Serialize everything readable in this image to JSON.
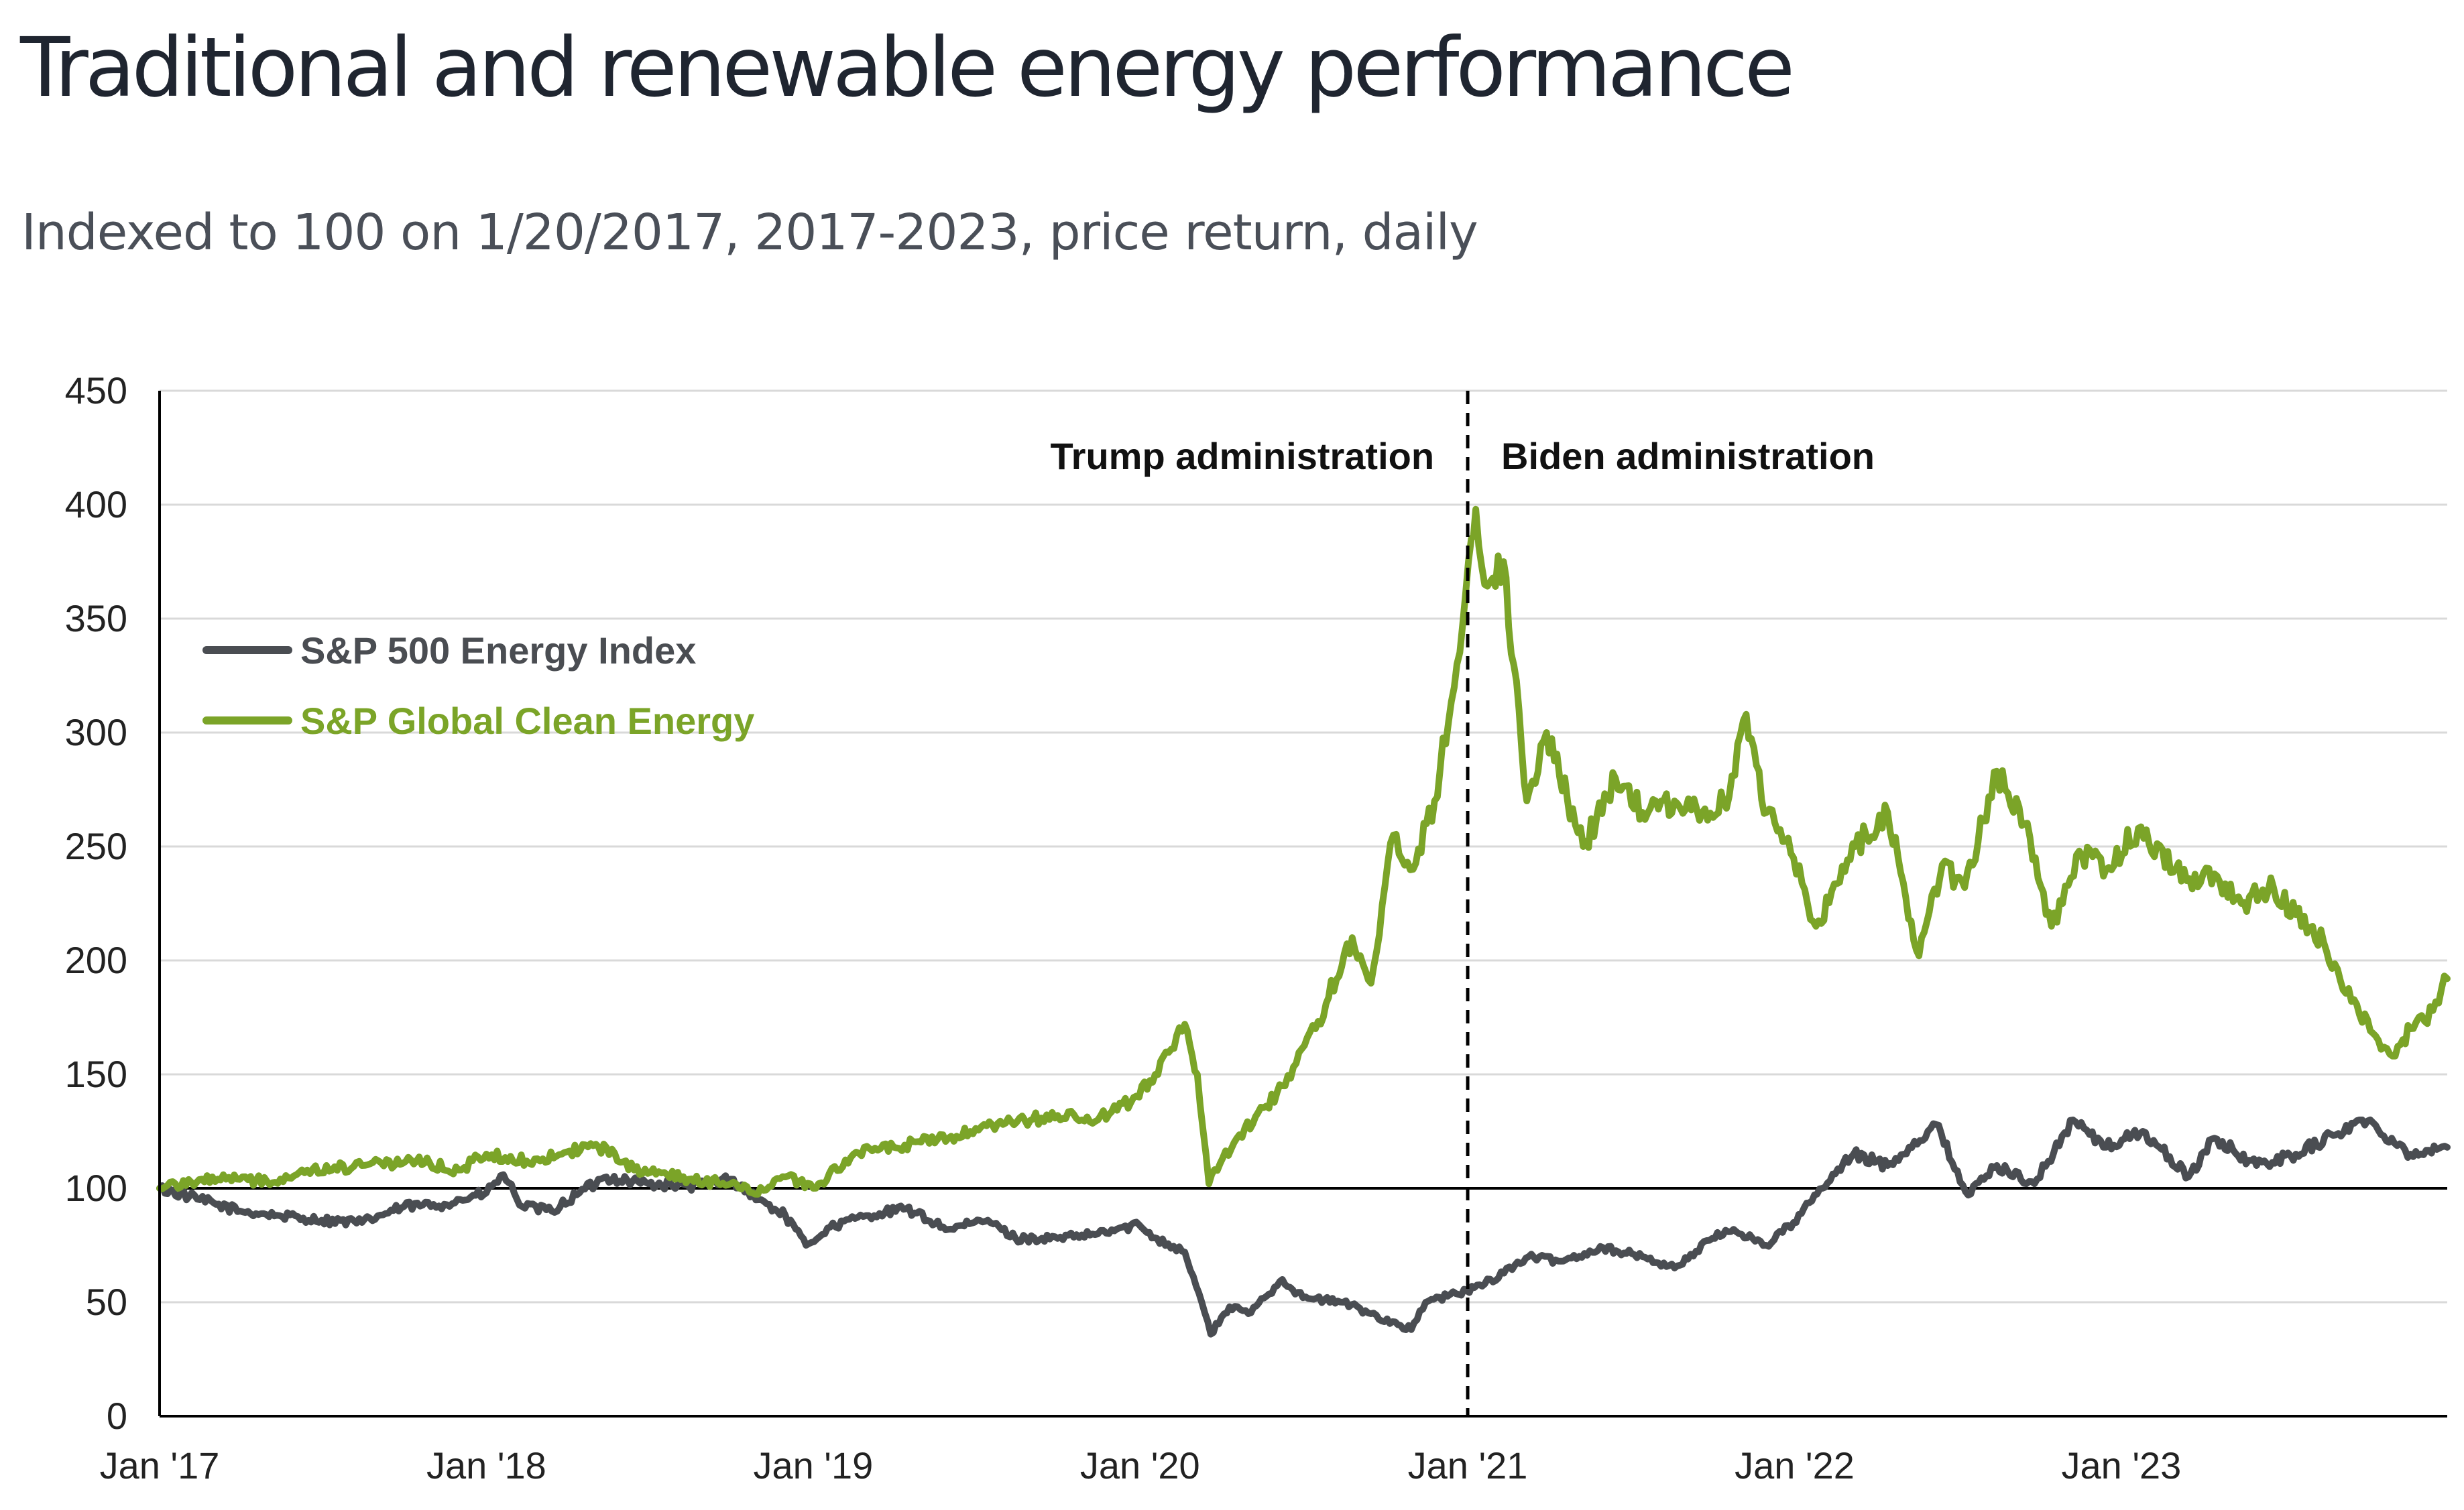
{
  "title": "Traditional and renewable energy performance",
  "subtitle": "Indexed to 100 on 1/20/2017, 2017-2023, price return, daily",
  "chart_data": {
    "type": "line",
    "title": "Traditional and renewable energy performance",
    "subtitle": "Indexed to 100 on 1/20/2017, 2017-2023, price return, daily",
    "xlabel": "",
    "ylabel": "",
    "ylim": [
      0,
      450
    ],
    "yticks": [
      0,
      50,
      100,
      150,
      200,
      250,
      300,
      350,
      400,
      450
    ],
    "xlim": [
      "2017-01-01",
      "2023-12-31"
    ],
    "xticks": [
      {
        "date": "2017-01-01",
        "label": "Jan '17"
      },
      {
        "date": "2018-01-01",
        "label": "Jan '18"
      },
      {
        "date": "2019-01-01",
        "label": "Jan '19"
      },
      {
        "date": "2020-01-01",
        "label": "Jan '20"
      },
      {
        "date": "2021-01-01",
        "label": "Jan '21"
      },
      {
        "date": "2022-01-01",
        "label": "Jan '22"
      },
      {
        "date": "2023-01-01",
        "label": "Jan '23"
      }
    ],
    "grid": true,
    "legend_position": "top-left",
    "reference_line": {
      "y": 100,
      "color": "#000000"
    },
    "divider": {
      "date": "2021-01-01",
      "style": "dashed"
    },
    "annotations": [
      {
        "text": "Trump administration",
        "date": "2021-01-01",
        "side": "left"
      },
      {
        "text": "Biden administration",
        "date": "2021-01-01",
        "side": "right"
      }
    ],
    "series": [
      {
        "name": "S&P 500 Energy Index",
        "color": "#4a4d52",
        "points": [
          [
            "2017-01-01",
            100
          ],
          [
            "2017-02-15",
            95
          ],
          [
            "2017-04-01",
            90
          ],
          [
            "2017-05-15",
            88
          ],
          [
            "2017-07-01",
            86
          ],
          [
            "2017-08-15",
            85
          ],
          [
            "2017-10-01",
            92
          ],
          [
            "2017-11-15",
            93
          ],
          [
            "2018-01-01",
            98
          ],
          [
            "2018-01-20",
            106
          ],
          [
            "2018-02-10",
            92
          ],
          [
            "2018-03-15",
            90
          ],
          [
            "2018-04-15",
            98
          ],
          [
            "2018-05-15",
            105
          ],
          [
            "2018-07-01",
            102
          ],
          [
            "2018-08-15",
            101
          ],
          [
            "2018-10-01",
            104
          ],
          [
            "2018-11-01",
            95
          ],
          [
            "2018-12-01",
            88
          ],
          [
            "2018-12-24",
            75
          ],
          [
            "2019-01-20",
            83
          ],
          [
            "2019-03-01",
            88
          ],
          [
            "2019-04-15",
            91
          ],
          [
            "2019-06-01",
            82
          ],
          [
            "2019-07-15",
            86
          ],
          [
            "2019-08-15",
            78
          ],
          [
            "2019-10-01",
            78
          ],
          [
            "2019-11-15",
            80
          ],
          [
            "2019-12-31",
            84
          ],
          [
            "2020-01-20",
            78
          ],
          [
            "2020-02-20",
            72
          ],
          [
            "2020-03-10",
            50
          ],
          [
            "2020-03-20",
            36
          ],
          [
            "2020-04-10",
            48
          ],
          [
            "2020-05-01",
            45
          ],
          [
            "2020-06-08",
            60
          ],
          [
            "2020-07-01",
            52
          ],
          [
            "2020-08-15",
            50
          ],
          [
            "2020-09-15",
            45
          ],
          [
            "2020-10-30",
            38
          ],
          [
            "2020-11-15",
            50
          ],
          [
            "2020-12-31",
            55
          ],
          [
            "2021-01-20",
            58
          ],
          [
            "2021-03-10",
            70
          ],
          [
            "2021-04-15",
            68
          ],
          [
            "2021-06-01",
            74
          ],
          [
            "2021-07-15",
            70
          ],
          [
            "2021-08-20",
            65
          ],
          [
            "2021-10-01",
            78
          ],
          [
            "2021-10-25",
            82
          ],
          [
            "2021-11-30",
            75
          ],
          [
            "2021-12-31",
            85
          ],
          [
            "2022-02-01",
            100
          ],
          [
            "2022-03-08",
            115
          ],
          [
            "2022-04-15",
            110
          ],
          [
            "2022-06-08",
            128
          ],
          [
            "2022-07-14",
            97
          ],
          [
            "2022-08-15",
            110
          ],
          [
            "2022-09-26",
            102
          ],
          [
            "2022-11-08",
            130
          ],
          [
            "2022-12-15",
            118
          ],
          [
            "2023-01-25",
            125
          ],
          [
            "2023-03-17",
            105
          ],
          [
            "2023-04-15",
            122
          ],
          [
            "2023-06-01",
            110
          ],
          [
            "2023-07-15",
            115
          ],
          [
            "2023-09-27",
            130
          ],
          [
            "2023-10-30",
            122
          ],
          [
            "2023-11-20",
            115
          ],
          [
            "2023-12-31",
            118
          ]
        ]
      },
      {
        "name": "S&P Global Clean Energy",
        "color": "#7ba428",
        "points": [
          [
            "2017-01-01",
            100
          ],
          [
            "2017-03-01",
            105
          ],
          [
            "2017-05-01",
            103
          ],
          [
            "2017-06-15",
            108
          ],
          [
            "2017-08-15",
            110
          ],
          [
            "2017-10-15",
            112
          ],
          [
            "2017-12-01",
            108
          ],
          [
            "2018-01-01",
            115
          ],
          [
            "2018-02-15",
            112
          ],
          [
            "2018-04-01",
            116
          ],
          [
            "2018-05-15",
            118
          ],
          [
            "2018-06-15",
            108
          ],
          [
            "2018-08-15",
            104
          ],
          [
            "2018-10-01",
            102
          ],
          [
            "2018-10-25",
            98
          ],
          [
            "2018-12-01",
            105
          ],
          [
            "2019-01-01",
            100
          ],
          [
            "2019-02-15",
            115
          ],
          [
            "2019-04-01",
            118
          ],
          [
            "2019-06-01",
            122
          ],
          [
            "2019-08-01",
            128
          ],
          [
            "2019-10-01",
            132
          ],
          [
            "2019-11-15",
            130
          ],
          [
            "2019-12-31",
            140
          ],
          [
            "2020-02-20",
            172
          ],
          [
            "2020-03-05",
            150
          ],
          [
            "2020-03-18",
            102
          ],
          [
            "2020-04-15",
            120
          ],
          [
            "2020-06-08",
            145
          ],
          [
            "2020-07-15",
            170
          ],
          [
            "2020-08-25",
            210
          ],
          [
            "2020-09-15",
            190
          ],
          [
            "2020-10-10",
            255
          ],
          [
            "2020-11-01",
            240
          ],
          [
            "2020-11-25",
            270
          ],
          [
            "2020-12-20",
            330
          ],
          [
            "2021-01-05",
            385
          ],
          [
            "2021-01-10",
            398
          ],
          [
            "2021-01-20",
            365
          ],
          [
            "2021-02-10",
            375
          ],
          [
            "2021-03-08",
            270
          ],
          [
            "2021-03-30",
            300
          ],
          [
            "2021-05-10",
            250
          ],
          [
            "2021-06-15",
            280
          ],
          [
            "2021-07-15",
            265
          ],
          [
            "2021-08-20",
            270
          ],
          [
            "2021-09-20",
            265
          ],
          [
            "2021-10-20",
            272
          ],
          [
            "2021-11-08",
            308
          ],
          [
            "2021-12-01",
            265
          ],
          [
            "2021-12-31",
            245
          ],
          [
            "2022-01-25",
            215
          ],
          [
            "2022-03-10",
            250
          ],
          [
            "2022-04-15",
            265
          ],
          [
            "2022-05-20",
            202
          ],
          [
            "2022-06-15",
            242
          ],
          [
            "2022-07-10",
            232
          ],
          [
            "2022-08-15",
            283
          ],
          [
            "2022-09-15",
            260
          ],
          [
            "2022-10-15",
            215
          ],
          [
            "2022-11-15",
            248
          ],
          [
            "2022-12-15",
            240
          ],
          [
            "2023-01-20",
            258
          ],
          [
            "2023-03-15",
            235
          ],
          [
            "2023-04-15",
            238
          ],
          [
            "2023-05-15",
            225
          ],
          [
            "2023-06-20",
            232
          ],
          [
            "2023-07-15",
            220
          ],
          [
            "2023-08-15",
            208
          ],
          [
            "2023-09-15",
            182
          ],
          [
            "2023-10-15",
            165
          ],
          [
            "2023-10-31",
            158
          ],
          [
            "2023-11-20",
            170
          ],
          [
            "2023-12-15",
            178
          ],
          [
            "2023-12-31",
            192
          ]
        ]
      }
    ]
  }
}
